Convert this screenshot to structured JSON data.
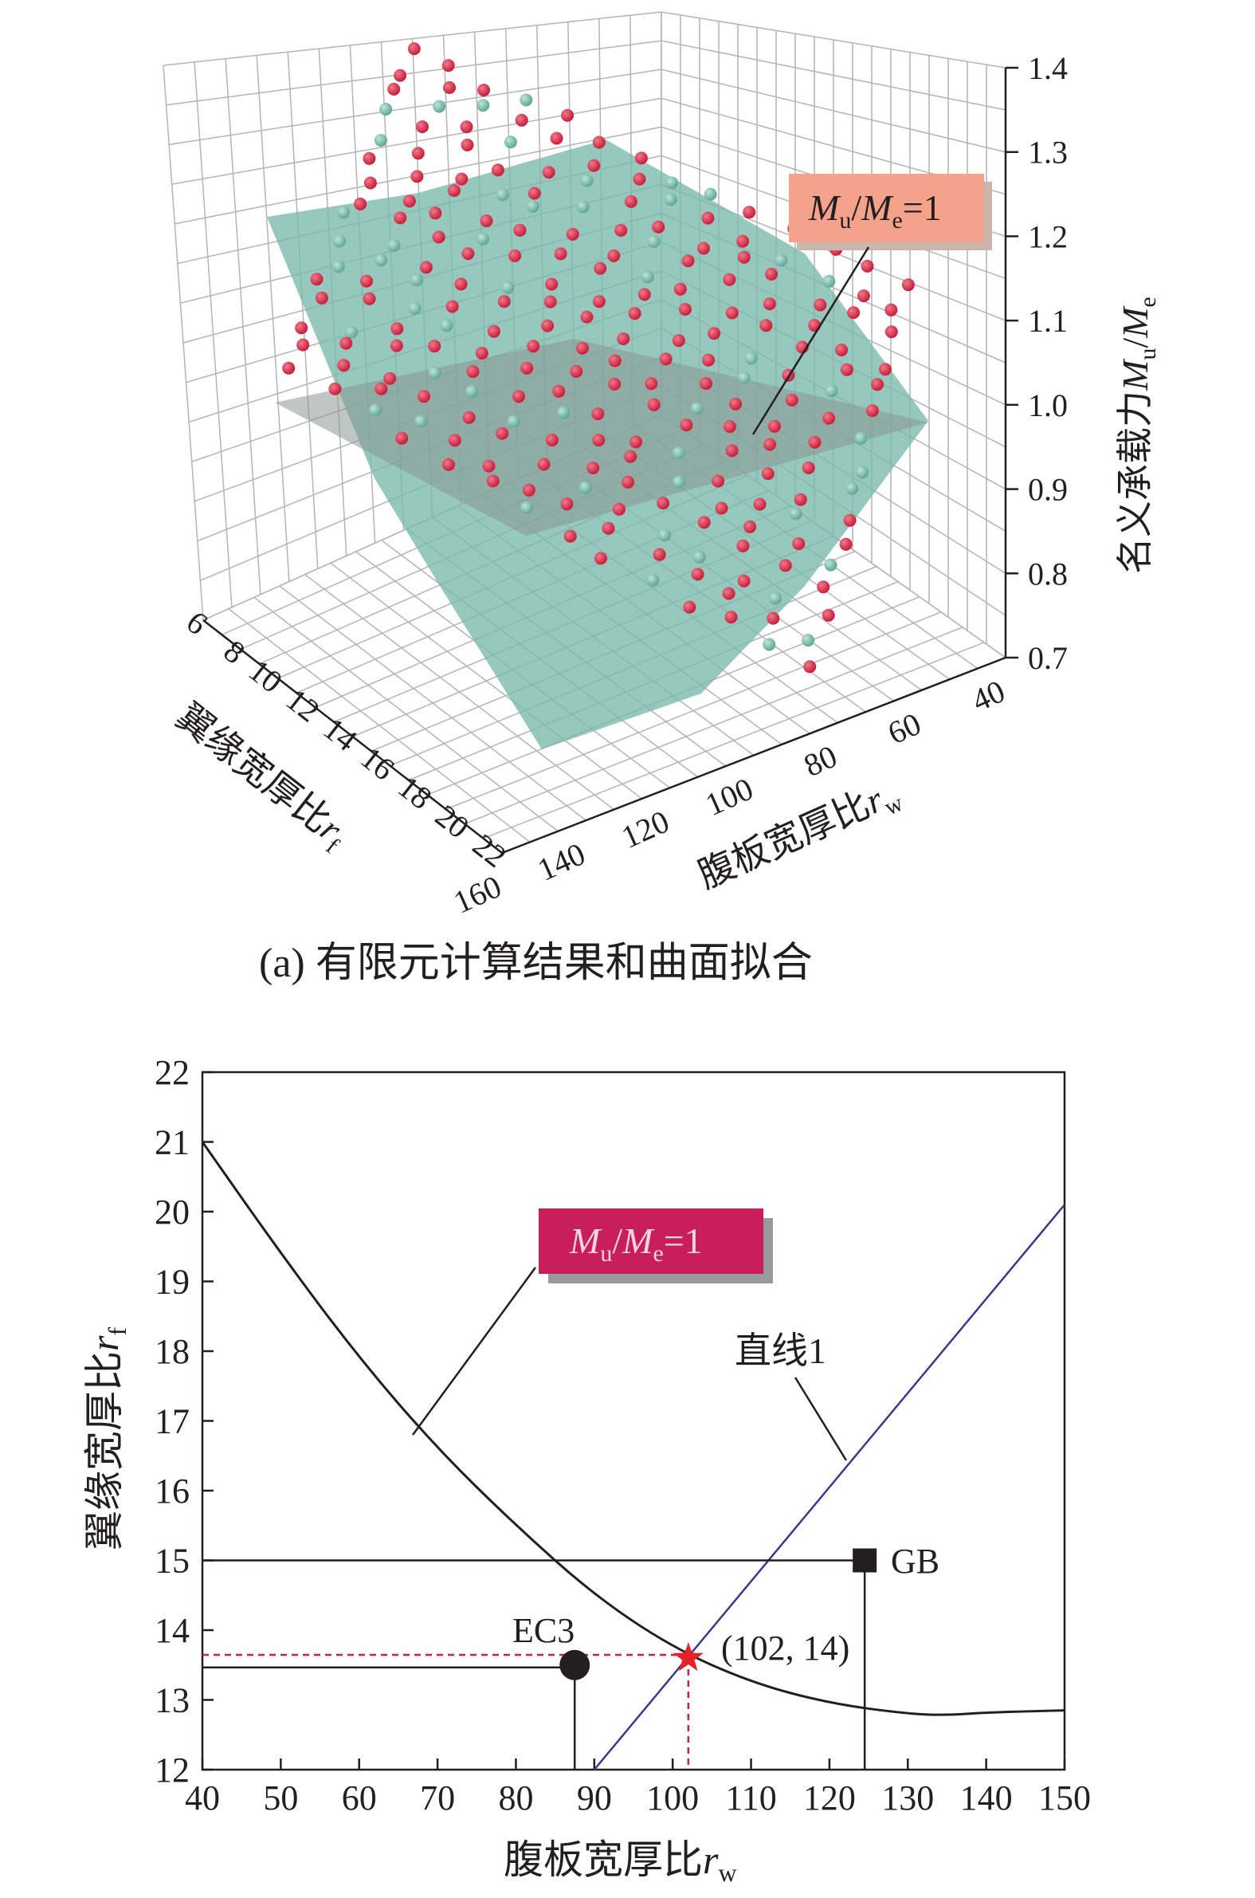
{
  "chart_data": [
    {
      "type": "scatter3d",
      "caption": "(a) 有限元计算结果和曲面拟合",
      "zlabel": {
        "main": "名义承载力",
        "sym1": "M",
        "sub1": "u",
        "slash": "/",
        "sym2": "M",
        "sub2": "e"
      },
      "xlabel": {
        "main": "翼缘宽厚比",
        "sym": "r",
        "sub": "f"
      },
      "ylabel": {
        "main": "腹板宽厚比",
        "sym": "r",
        "sub": "w"
      },
      "x_ticks": [
        "6",
        "8",
        "10",
        "12",
        "14",
        "16",
        "18",
        "20",
        "22"
      ],
      "y_ticks": [
        "40",
        "60",
        "80",
        "100",
        "120",
        "140",
        "160"
      ],
      "z_ticks": [
        "0.7",
        "0.8",
        "0.9",
        "1.0",
        "1.1",
        "1.2",
        "1.3",
        "1.4"
      ],
      "xlim": [
        6,
        22
      ],
      "ylim": [
        40,
        160
      ],
      "zlim": [
        0.7,
        1.4
      ],
      "plane_z": 1.0,
      "annotation": {
        "sym1": "M",
        "sub1": "u",
        "slash": "/",
        "sym2": "M",
        "sub2": "e",
        "eq": "=1"
      },
      "colors": {
        "red_sphere": "#c81e3c",
        "teal_sphere": "#5fa898",
        "surface": "#78b9aa",
        "plane": "#8a9892",
        "annotation_bg": "#f4a28c"
      }
    },
    {
      "type": "line",
      "xlabel": {
        "main": "腹板宽厚比",
        "sym": "r",
        "sub": "w"
      },
      "ylabel": {
        "main": "翼缘宽厚比",
        "sym": "r",
        "sub": "f"
      },
      "xlim": [
        40,
        150
      ],
      "ylim": [
        12,
        22
      ],
      "x_ticks": [
        "40",
        "50",
        "60",
        "70",
        "80",
        "90",
        "100",
        "110",
        "120",
        "130",
        "140",
        "150"
      ],
      "y_ticks": [
        "12",
        "13",
        "14",
        "15",
        "16",
        "17",
        "18",
        "19",
        "20",
        "21",
        "22"
      ],
      "curve": {
        "x": [
          40,
          50,
          60,
          70,
          80,
          90,
          100,
          110,
          120,
          130,
          135,
          140,
          150
        ],
        "y": [
          21.0,
          19.4,
          17.9,
          16.6,
          15.5,
          14.5,
          13.75,
          13.25,
          12.95,
          12.8,
          12.78,
          12.82,
          12.85
        ]
      },
      "line1": {
        "label": "直线1",
        "x": [
          90,
          150
        ],
        "y": [
          12.0,
          20.1
        ]
      },
      "ec3": {
        "label": "EC3",
        "x": 87.5,
        "y": 13.5
      },
      "gb": {
        "label": "GB",
        "x": 124.5,
        "y": 15.0
      },
      "intersection": {
        "label": "(102, 14)",
        "x": 102,
        "y": 13.6
      },
      "annotation": {
        "sym1": "M",
        "sub1": "u",
        "slash": "/",
        "sym2": "M",
        "sub2": "e",
        "eq": "=1"
      },
      "colors": {
        "curve": "#231f20",
        "line1": "#3a3a8c",
        "dashed": "#d0203c",
        "star": "#e8202a",
        "annotation_bg": "#c81e5a"
      }
    }
  ]
}
